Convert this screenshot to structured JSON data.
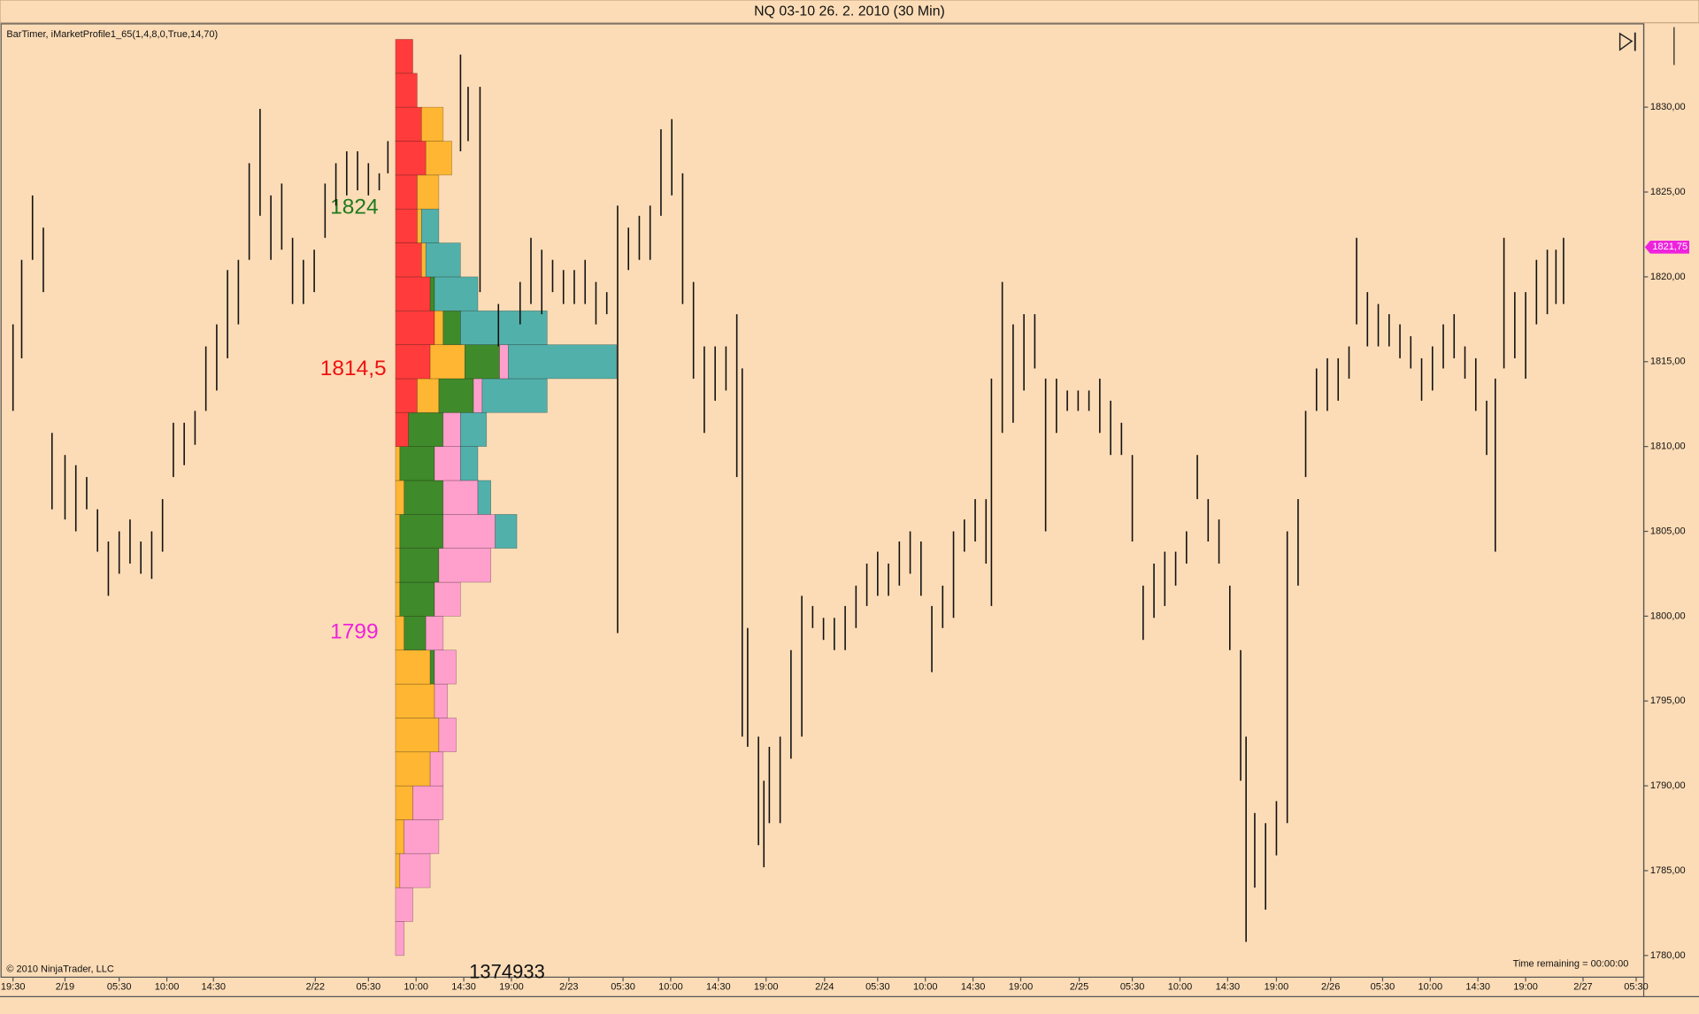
{
  "chart_data": {
    "type": "ohlc",
    "title": "NQ 03-10  26. 2. 2010 (30 Min)",
    "indicator_label": "BarTimer, iMarketProfile1_65(1,4,8,0,True,14,70)",
    "copyright": "© 2010 NinjaTrader, LLC",
    "time_remaining": "Time remaining = 00:00:00",
    "volume_text": "1374933",
    "annotations": [
      {
        "text": "1824",
        "color": "#1e7a1e"
      },
      {
        "text": "1814,5",
        "color": "#ee1111"
      },
      {
        "text": "1799",
        "color": "#ee22dd"
      }
    ],
    "last_price": {
      "value": 1821.75,
      "label": "1821,75"
    },
    "ylim": [
      1778.85,
      1834.53
    ],
    "yticks": [
      {
        "value": 1780,
        "label": "1780,00"
      },
      {
        "value": 1785,
        "label": "1785,00"
      },
      {
        "value": 1790,
        "label": "1790,00"
      },
      {
        "value": 1795,
        "label": "1795,00"
      },
      {
        "value": 1800,
        "label": "1800,00"
      },
      {
        "value": 1805,
        "label": "1805,00"
      },
      {
        "value": 1810,
        "label": "1810,00"
      },
      {
        "value": 1815,
        "label": "1815,00"
      },
      {
        "value": 1820,
        "label": "1820,00"
      },
      {
        "value": 1825,
        "label": "1825,00"
      },
      {
        "value": 1830,
        "label": "1830,00"
      }
    ],
    "xlim": [
      0,
      303.4
    ],
    "xticks": [
      {
        "value": 2.4,
        "label": "19:30"
      },
      {
        "value": 12,
        "label": "2/19"
      },
      {
        "value": 22,
        "label": "05:30"
      },
      {
        "value": 30.8,
        "label": "10:00"
      },
      {
        "value": 39.4,
        "label": "14:30"
      },
      {
        "value": 58.2,
        "label": "2/22"
      },
      {
        "value": 68,
        "label": "05:30"
      },
      {
        "value": 76.8,
        "label": "10:00"
      },
      {
        "value": 85.6,
        "label": "14:30"
      },
      {
        "value": 94.4,
        "label": "19:00"
      },
      {
        "value": 105,
        "label": "2/23"
      },
      {
        "value": 115,
        "label": "05:30"
      },
      {
        "value": 123.8,
        "label": "10:00"
      },
      {
        "value": 132.6,
        "label": "14:30"
      },
      {
        "value": 141.4,
        "label": "19:00"
      },
      {
        "value": 152.2,
        "label": "2/24"
      },
      {
        "value": 162,
        "label": "05:30"
      },
      {
        "value": 170.8,
        "label": "10:00"
      },
      {
        "value": 179.6,
        "label": "14:30"
      },
      {
        "value": 188.4,
        "label": "19:00"
      },
      {
        "value": 199.2,
        "label": "2/25"
      },
      {
        "value": 209,
        "label": "05:30"
      },
      {
        "value": 217.8,
        "label": "10:00"
      },
      {
        "value": 226.6,
        "label": "14:30"
      },
      {
        "value": 235.6,
        "label": "19:00"
      },
      {
        "value": 245.6,
        "label": "2/26"
      },
      {
        "value": 255.2,
        "label": "05:30"
      },
      {
        "value": 264,
        "label": "10:00"
      },
      {
        "value": 272.8,
        "label": "14:30"
      },
      {
        "value": 281.6,
        "label": "19:00"
      },
      {
        "value": 292.2,
        "label": "2/27"
      },
      {
        "value": 302,
        "label": "05:30"
      }
    ],
    "bar_color": "#111111",
    "bars": {
      "x": [
        2.4,
        4,
        6,
        8,
        9.6,
        12,
        14,
        16,
        18,
        20,
        22,
        24,
        26,
        28,
        30,
        32,
        34,
        36,
        38,
        40,
        42,
        44,
        46,
        48,
        50,
        52,
        54,
        56,
        58,
        60,
        62,
        64,
        66,
        68,
        70,
        71.6,
        85,
        86.4,
        88.6,
        92,
        96,
        98,
        100,
        102,
        104,
        106,
        108,
        110,
        112,
        114,
        116,
        118,
        120,
        122,
        124,
        126,
        128,
        130,
        132,
        134,
        136,
        137,
        138,
        140,
        141,
        142,
        144,
        146,
        148,
        150,
        152,
        154,
        156,
        158,
        160,
        162,
        164,
        166,
        168,
        170,
        172,
        174,
        176,
        178,
        180,
        182,
        183,
        185,
        187,
        189,
        191,
        193,
        195,
        197,
        199,
        201,
        203,
        205,
        207,
        209,
        211,
        213,
        215,
        217,
        219,
        221,
        223,
        225,
        227,
        229,
        230,
        231.6,
        233.6,
        235.6,
        237.6,
        239.6,
        241,
        243,
        245,
        247,
        249,
        250.4,
        252.4,
        254.4,
        256.4,
        258.4,
        260.4,
        262.4,
        264.4,
        266.4,
        268.4,
        270.4,
        272.4,
        274.4,
        276,
        277.6,
        279.6,
        281.6,
        283.6,
        285.6,
        287.2,
        288.6
      ],
      "high": [
        1817.2,
        1821,
        1824.8,
        1822.9,
        1810.8,
        1809.5,
        1808.9,
        1808.2,
        1806.3,
        1804.4,
        1805,
        1805.7,
        1804.4,
        1805,
        1806.9,
        1811.4,
        1811.4,
        1812.1,
        1815.9,
        1817.2,
        1820.4,
        1821,
        1826.7,
        1829.9,
        1824.8,
        1825.5,
        1822.3,
        1821,
        1821.6,
        1825.5,
        1826.7,
        1827.4,
        1827.4,
        1826.7,
        1826.1,
        1828,
        1833.1,
        1831.2,
        1831.2,
        1818.4,
        1819.7,
        1822.3,
        1821.6,
        1821,
        1820.4,
        1820.4,
        1821,
        1819.7,
        1819.1,
        1824.2,
        1822.9,
        1823.6,
        1824.2,
        1828.7,
        1829.3,
        1826.1,
        1819.7,
        1815.9,
        1815.9,
        1815.9,
        1817.8,
        1814.6,
        1799.3,
        1792.9,
        1790.3,
        1792.3,
        1792.9,
        1798,
        1801.2,
        1800.6,
        1799.9,
        1799.9,
        1800.6,
        1801.8,
        1803.1,
        1803.8,
        1803.1,
        1804.4,
        1805,
        1804.4,
        1800.6,
        1801.8,
        1805,
        1805.7,
        1806.9,
        1806.9,
        1814,
        1819.7,
        1817.2,
        1817.8,
        1817.8,
        1814,
        1814,
        1813.3,
        1813.3,
        1813.3,
        1814,
        1812.7,
        1811.4,
        1809.5,
        1801.8,
        1803.1,
        1803.8,
        1803.8,
        1805,
        1809.5,
        1806.9,
        1805.7,
        1801.8,
        1798,
        1792.9,
        1788.4,
        1787.8,
        1789.1,
        1805,
        1806.9,
        1812.1,
        1814.6,
        1815.2,
        1815.2,
        1815.9,
        1822.3,
        1819.1,
        1818.4,
        1817.8,
        1817.2,
        1816.5,
        1815.2,
        1815.9,
        1817.2,
        1817.8,
        1815.9,
        1815.2,
        1812.7,
        1814,
        1822.3,
        1819.1,
        1819.1,
        1821,
        1821.6,
        1821.6,
        1822.3
      ],
      "low": [
        1812.1,
        1815.2,
        1821,
        1819.1,
        1806.3,
        1805.7,
        1805,
        1806.3,
        1803.8,
        1801.2,
        1802.5,
        1803.1,
        1802.5,
        1802.2,
        1803.8,
        1808.2,
        1808.9,
        1810.1,
        1812.1,
        1813.3,
        1815.2,
        1817.2,
        1821,
        1823.6,
        1821,
        1821.6,
        1818.4,
        1818.4,
        1819.1,
        1822.3,
        1824.2,
        1824.8,
        1825.1,
        1824.8,
        1825.1,
        1826.1,
        1827.4,
        1828,
        1819.1,
        1815.9,
        1817.2,
        1818.4,
        1817.8,
        1819.1,
        1818.4,
        1818.4,
        1818.4,
        1817.2,
        1817.8,
        1799,
        1820.4,
        1821,
        1821,
        1823.6,
        1824.8,
        1818.4,
        1814,
        1810.8,
        1812.7,
        1813.3,
        1808.2,
        1792.9,
        1792.3,
        1786.5,
        1785.2,
        1787.8,
        1787.8,
        1791.6,
        1792.9,
        1799.3,
        1798.6,
        1798,
        1798,
        1799.3,
        1800.6,
        1801.2,
        1801.2,
        1801.8,
        1802.5,
        1801.2,
        1796.7,
        1799.3,
        1799.9,
        1803.8,
        1804.4,
        1803.1,
        1800.6,
        1810.8,
        1811.4,
        1813.3,
        1814.6,
        1805,
        1810.8,
        1812.1,
        1812.1,
        1812.1,
        1810.8,
        1809.5,
        1809.5,
        1804.4,
        1798.6,
        1799.9,
        1800.6,
        1801.8,
        1803.1,
        1806.9,
        1804.4,
        1803.1,
        1798,
        1790.3,
        1780.8,
        1784,
        1782.7,
        1785.9,
        1787.8,
        1801.8,
        1808.2,
        1812.1,
        1812.1,
        1812.7,
        1814,
        1817.2,
        1815.9,
        1815.9,
        1815.9,
        1815.2,
        1814.6,
        1812.7,
        1813.3,
        1814.6,
        1815.2,
        1814,
        1812.1,
        1809.5,
        1803.8,
        1814.6,
        1815.2,
        1814,
        1817.2,
        1817.8,
        1818.4,
        1818.4
      ]
    },
    "profile": {
      "levels": [
        1781,
        1783,
        1785,
        1787,
        1789,
        1791,
        1793,
        1795,
        1797,
        1799,
        1801,
        1803,
        1805,
        1807,
        1809,
        1811,
        1813,
        1815,
        1817,
        1819,
        1821,
        1823,
        1825,
        1827,
        1829,
        1831,
        1833
      ],
      "layers": [
        {
          "color": "#ff3b3b",
          "values": [
            0,
            0,
            0,
            0,
            0,
            0,
            0,
            0,
            0,
            0,
            0,
            0,
            0,
            0,
            0,
            3,
            5,
            8,
            9,
            8,
            6,
            5,
            5,
            7,
            6,
            5,
            4
          ]
        },
        {
          "color": "#ffb632",
          "values": [
            0,
            0,
            1,
            2,
            4,
            8,
            10,
            9,
            8,
            2,
            1,
            1,
            1,
            2,
            1,
            0,
            5,
            8,
            2,
            0,
            1,
            1,
            5,
            6,
            5,
            0,
            0
          ]
        },
        {
          "color": "#3f8a2a",
          "values": [
            0,
            0,
            0,
            0,
            0,
            0,
            0,
            0,
            1,
            5,
            8,
            9,
            10,
            9,
            8,
            8,
            8,
            8,
            4,
            1,
            0,
            0,
            0,
            0,
            0,
            0,
            0
          ]
        },
        {
          "color": "#ff9fcc",
          "values": [
            2,
            4,
            7,
            8,
            7,
            3,
            4,
            3,
            5,
            4,
            6,
            12,
            12,
            8,
            6,
            4,
            2,
            2,
            0,
            0,
            0,
            0,
            0,
            0,
            0,
            0,
            0
          ]
        },
        {
          "color": "#52b0aa",
          "values": [
            0,
            0,
            0,
            0,
            0,
            0,
            0,
            0,
            0,
            0,
            0,
            0,
            5,
            3,
            4,
            6,
            15,
            25,
            20,
            10,
            8,
            4,
            0,
            0,
            0,
            0,
            0
          ]
        }
      ]
    }
  }
}
